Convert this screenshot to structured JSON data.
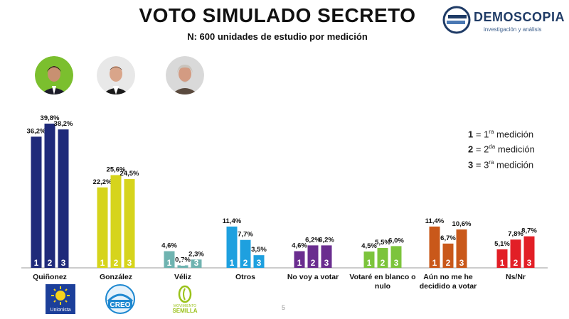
{
  "header": {
    "title": "VOTO SIMULADO SECRETO",
    "subtitle": "N: 600 unidades de estudio por medición"
  },
  "brand": {
    "name": "DEMOSCOPIA",
    "tagline": "investigación y análisis"
  },
  "legend": {
    "items": [
      {
        "num": "1",
        "ord": "1",
        "sup": "ra",
        "text": "medición"
      },
      {
        "num": "2",
        "ord": "2",
        "sup": "da",
        "text": "medición"
      },
      {
        "num": "3",
        "ord": "3",
        "sup": "ra",
        "text": "medición"
      }
    ]
  },
  "party_logos": {
    "unionista": "Unionista",
    "creo": "CREO",
    "semilla_top": "MOVIMIENTO",
    "semilla": "SEMILLA"
  },
  "page_number": "5",
  "chart_data": {
    "type": "bar",
    "title": "VOTO SIMULADO SECRETO",
    "subtitle": "N: 600 unidades de estudio por medición",
    "bar_labels": [
      "1",
      "2",
      "3"
    ],
    "categories": [
      "Quiñonez",
      "González",
      "Véliz",
      "Otros",
      "No voy a votar",
      "Votaré en blanco o nulo",
      "Aún no me he decidido a votar",
      "Ns/Nr"
    ],
    "series": [
      {
        "name": "1 = 1ra medición",
        "values": [
          36.2,
          22.2,
          4.6,
          11.4,
          4.6,
          4.5,
          11.4,
          5.1
        ],
        "labels": [
          "36,2%",
          "22,2%",
          "4,6%",
          "11,4%",
          "4,6%",
          "4,5%",
          "11,4%",
          "5,1%"
        ]
      },
      {
        "name": "2 = 2da medición",
        "values": [
          39.8,
          25.6,
          0.7,
          7.7,
          6.2,
          5.5,
          6.7,
          7.8
        ],
        "labels": [
          "39,8%",
          "25,6%",
          "0,7%",
          "7,7%",
          "6,2%",
          "5,5%",
          "6,7%",
          "7,8%"
        ]
      },
      {
        "name": "3 = 3ra medición",
        "values": [
          38.2,
          24.5,
          2.3,
          3.5,
          6.2,
          6.0,
          10.6,
          8.7
        ],
        "labels": [
          "38,2%",
          "24,5%",
          "2,3%",
          "3,5%",
          "6,2%",
          "6,0%",
          "10,6%",
          "8,7%"
        ]
      }
    ],
    "category_colors": [
      "#1f2a7a",
      "#d6d41c",
      "#6fb3b0",
      "#1ea0df",
      "#6a2d8f",
      "#7cc43c",
      "#c9581a",
      "#e21f26"
    ],
    "legend_position": "top-right",
    "grid": false
  }
}
